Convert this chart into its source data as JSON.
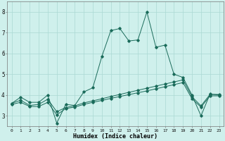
{
  "xlabel": "Humidex (Indice chaleur)",
  "background_color": "#cff0ec",
  "line_color": "#1a6b5a",
  "grid_color": "#aad8d3",
  "xlim": [
    -0.5,
    23.5
  ],
  "ylim": [
    2.5,
    8.5
  ],
  "yticks": [
    3,
    4,
    5,
    6,
    7,
    8
  ],
  "xticks": [
    0,
    1,
    2,
    3,
    4,
    5,
    6,
    7,
    8,
    9,
    10,
    11,
    12,
    13,
    14,
    15,
    16,
    17,
    18,
    19,
    20,
    21,
    22,
    23
  ],
  "series1": {
    "x": [
      0,
      1,
      2,
      3,
      4,
      5,
      6,
      7,
      8,
      9,
      10,
      11,
      12,
      13,
      14,
      15,
      16,
      17,
      18,
      19,
      20,
      21,
      22,
      23
    ],
    "y": [
      3.6,
      3.9,
      3.65,
      3.65,
      4.0,
      2.65,
      3.55,
      3.5,
      4.15,
      4.35,
      5.85,
      7.1,
      7.2,
      6.6,
      6.65,
      8.0,
      6.3,
      6.4,
      5.0,
      4.85,
      4.0,
      3.0,
      4.05,
      4.0
    ]
  },
  "series2": {
    "x": [
      0,
      1,
      2,
      3,
      4,
      5,
      6,
      7,
      8,
      9,
      10,
      11,
      12,
      13,
      14,
      15,
      16,
      17,
      18,
      19,
      20,
      21,
      22,
      23
    ],
    "y": [
      3.6,
      3.75,
      3.5,
      3.55,
      3.8,
      3.2,
      3.4,
      3.48,
      3.62,
      3.72,
      3.82,
      3.93,
      4.03,
      4.13,
      4.23,
      4.33,
      4.43,
      4.53,
      4.63,
      4.73,
      3.92,
      3.48,
      4.03,
      4.03
    ]
  },
  "series3": {
    "x": [
      0,
      1,
      2,
      3,
      4,
      5,
      6,
      7,
      8,
      9,
      10,
      11,
      12,
      13,
      14,
      15,
      16,
      17,
      18,
      19,
      20,
      21,
      22,
      23
    ],
    "y": [
      3.55,
      3.65,
      3.45,
      3.45,
      3.65,
      3.05,
      3.35,
      3.42,
      3.55,
      3.65,
      3.74,
      3.84,
      3.93,
      4.02,
      4.11,
      4.2,
      4.3,
      4.4,
      4.5,
      4.6,
      3.82,
      3.42,
      3.96,
      3.96
    ]
  }
}
